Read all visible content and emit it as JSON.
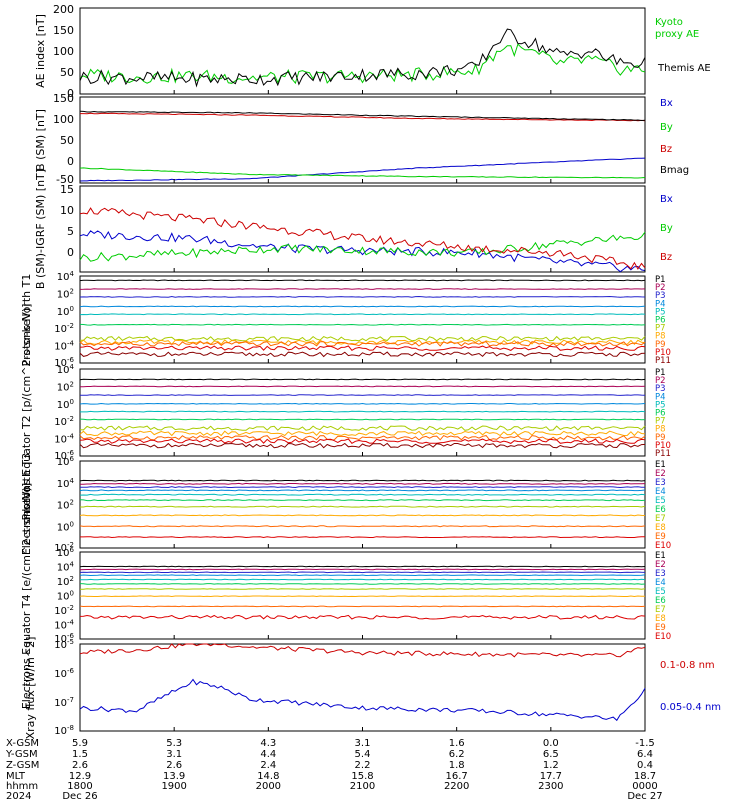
{
  "colors": {
    "black": "#000000",
    "green": "#00cc00",
    "red": "#cc0000",
    "blue": "#0000cc",
    "ch": [
      "#000000",
      "#aa0055",
      "#2222cc",
      "#0088dd",
      "#00bbbb",
      "#00cc55",
      "#aacc00",
      "#ffaa00",
      "#ff6600",
      "#dd0000",
      "#880000"
    ]
  },
  "chart_data": [
    {
      "type": "line",
      "id": "ae",
      "ylabel": "AE index [nT]",
      "ylim": [
        0,
        200
      ],
      "yticks": [
        "200",
        "150",
        "100",
        "50",
        "0"
      ],
      "series": [
        {
          "name": "Kyoto proxy AE",
          "color": "green",
          "x": [
            0,
            0.1,
            0.2,
            0.3,
            0.4,
            0.5,
            0.6,
            0.65,
            0.7,
            0.75,
            0.8,
            0.85,
            0.9,
            0.95,
            1.0
          ],
          "values": [
            45,
            40,
            42,
            38,
            40,
            42,
            45,
            50,
            55,
            110,
            95,
            70,
            80,
            60,
            55
          ]
        },
        {
          "name": "Themis AE",
          "color": "black",
          "x": [
            0,
            0.1,
            0.2,
            0.3,
            0.4,
            0.5,
            0.6,
            0.65,
            0.7,
            0.75,
            0.8,
            0.85,
            0.9,
            0.95,
            1.0
          ],
          "values": [
            40,
            38,
            35,
            35,
            38,
            45,
            48,
            55,
            60,
            140,
            120,
            90,
            100,
            75,
            70
          ]
        }
      ]
    },
    {
      "type": "line",
      "id": "bsm",
      "ylabel": "B (SM) [nT]",
      "ylim": [
        -50,
        150
      ],
      "yticks": [
        "150",
        "100",
        "50",
        "0",
        "-50"
      ],
      "series": [
        {
          "name": "Bx",
          "color": "blue",
          "x": [
            0,
            0.3,
            0.6,
            1.0
          ],
          "values": [
            -45,
            -40,
            -15,
            8
          ]
        },
        {
          "name": "By",
          "color": "green",
          "x": [
            0,
            0.3,
            0.6,
            1.0
          ],
          "values": [
            -15,
            -30,
            -35,
            -38
          ]
        },
        {
          "name": "Bz",
          "color": "red",
          "x": [
            0,
            0.3,
            0.6,
            1.0
          ],
          "values": [
            112,
            108,
            100,
            95
          ]
        },
        {
          "name": "Bmag",
          "color": "black",
          "x": [
            0,
            0.3,
            0.6,
            1.0
          ],
          "values": [
            116,
            113,
            105,
            96
          ]
        }
      ]
    },
    {
      "type": "line",
      "id": "bigrf",
      "ylabel": "B (SM)-IGRF (SM) [nT]",
      "ylim": [
        -3,
        15
      ],
      "yticks": [
        "15",
        "10",
        "5",
        "0"
      ],
      "series": [
        {
          "name": "Bx",
          "color": "blue",
          "x": [
            0,
            0.2,
            0.35,
            0.5,
            0.7,
            0.85,
            1.0
          ],
          "values": [
            5,
            4,
            2,
            1.5,
            1,
            -1,
            -2.5
          ]
        },
        {
          "name": "By",
          "color": "green",
          "x": [
            0,
            0.2,
            0.35,
            0.5,
            0.7,
            0.85,
            1.0
          ],
          "values": [
            0,
            1,
            2,
            1.5,
            1,
            3,
            4.5
          ]
        },
        {
          "name": "Bz",
          "color": "red",
          "x": [
            0,
            0.2,
            0.35,
            0.5,
            0.7,
            0.85,
            1.0
          ],
          "values": [
            10,
            8,
            6,
            4,
            2,
            1,
            -2
          ]
        }
      ]
    },
    {
      "type": "line",
      "id": "pn",
      "log": true,
      "ylabel": "Protons North T1",
      "ylim": [
        -6,
        4
      ],
      "yticks": [
        "10^4",
        "10^2",
        "10^0",
        "10^-2",
        "10^-4",
        "10^-6"
      ],
      "series": [
        {
          "name": "P1",
          "level": 3.5
        },
        {
          "name": "P2",
          "level": 2.5
        },
        {
          "name": "P3",
          "level": 1.6
        },
        {
          "name": "P4",
          "level": 0.5
        },
        {
          "name": "P5",
          "level": -0.4
        },
        {
          "name": "P6",
          "level": -1.6
        },
        {
          "name": "P7",
          "level": -3.2
        },
        {
          "name": "P8",
          "level": -3.6
        },
        {
          "name": "P9",
          "level": -3.8
        },
        {
          "name": "P10",
          "level": -4.3
        },
        {
          "name": "P11",
          "level": -5.0
        }
      ]
    },
    {
      "type": "line",
      "id": "pe",
      "log": true,
      "ylabel": "Protons Equator T2 [p/(cm^2-s-sr-keV)]",
      "ylim": [
        -6,
        4
      ],
      "yticks": [
        "10^4",
        "10^2",
        "10^0",
        "10^-2",
        "10^-4",
        "10^-6"
      ],
      "series": [
        {
          "name": "P1",
          "level": 2.8
        },
        {
          "name": "P2",
          "level": 2.0
        },
        {
          "name": "P3",
          "level": 1.0
        },
        {
          "name": "P4",
          "level": 0.0
        },
        {
          "name": "P5",
          "level": -0.9
        },
        {
          "name": "P6",
          "level": -1.8
        },
        {
          "name": "P7",
          "level": -2.8
        },
        {
          "name": "P8",
          "level": -3.4
        },
        {
          "name": "P9",
          "level": -3.9
        },
        {
          "name": "P10",
          "level": -4.3
        },
        {
          "name": "P11",
          "level": -4.8
        }
      ]
    },
    {
      "type": "line",
      "id": "en",
      "log": true,
      "ylabel": "Electrons North T3",
      "ylim": [
        -2,
        6
      ],
      "yticks": [
        "10^6",
        "10^4",
        "10^2",
        "10^0",
        "10^-2"
      ],
      "series": [
        {
          "name": "E1",
          "level": 4.2
        },
        {
          "name": "E2",
          "level": 3.9
        },
        {
          "name": "E3",
          "level": 3.6
        },
        {
          "name": "E4",
          "level": 3.3
        },
        {
          "name": "E5",
          "level": 2.9
        },
        {
          "name": "E6",
          "level": 2.4
        },
        {
          "name": "E7",
          "level": 1.8
        },
        {
          "name": "E8",
          "level": 1.0
        },
        {
          "name": "E9",
          "level": 0.0
        },
        {
          "name": "E10",
          "level": -1.0
        }
      ]
    },
    {
      "type": "line",
      "id": "ee",
      "log": true,
      "ylabel": "Electrons Equator T4 [e/(cm^2-s-sr-keV)]",
      "ylim": [
        -6,
        6
      ],
      "yticks": [
        "10^6",
        "10^4",
        "10^2",
        "10^0",
        "10^-2",
        "10^-4",
        "10^-6"
      ],
      "series": [
        {
          "name": "E1",
          "level": 4.0
        },
        {
          "name": "E2",
          "level": 3.6
        },
        {
          "name": "E3",
          "level": 3.2
        },
        {
          "name": "E4",
          "level": 2.8
        },
        {
          "name": "E5",
          "level": 2.2
        },
        {
          "name": "E6",
          "level": 1.6
        },
        {
          "name": "E7",
          "level": 0.9
        },
        {
          "name": "E8",
          "level": -0.1
        },
        {
          "name": "E9",
          "level": -1.5
        },
        {
          "name": "E10",
          "level": -3.0
        }
      ]
    },
    {
      "type": "line",
      "id": "xray",
      "log": true,
      "ylabel": "Xray flux [W/m^2]",
      "ylim": [
        -8,
        -5
      ],
      "yticks": [
        "10^-5",
        "10^-6",
        "10^-7",
        "10^-8"
      ],
      "series": [
        {
          "name": "0.1-0.8 nm",
          "color": "red",
          "x": [
            0,
            0.1,
            0.2,
            0.25,
            0.3,
            0.5,
            0.7,
            0.9,
            0.95,
            1.0
          ],
          "values": [
            -5.3,
            -5.2,
            -5.0,
            -5.0,
            -5.1,
            -5.3,
            -5.35,
            -5.4,
            -5.4,
            -5.1
          ]
        },
        {
          "name": "0.05-0.4 nm",
          "color": "blue",
          "x": [
            0,
            0.1,
            0.2,
            0.25,
            0.3,
            0.5,
            0.7,
            0.9,
            0.95,
            1.0
          ],
          "values": [
            -7.2,
            -7.3,
            -6.3,
            -6.5,
            -6.9,
            -7.2,
            -7.3,
            -7.5,
            -7.6,
            -6.6
          ]
        }
      ]
    }
  ],
  "ticks": {
    "rows": [
      "X-GSM",
      "Y-GSM",
      "Z-GSM",
      "MLT",
      "hhmm",
      "2024"
    ],
    "columns": [
      {
        "x": "5.9",
        "y": "1.5",
        "z": "2.6",
        "mlt": "12.9",
        "hhmm": "1800",
        "date": "Dec 26"
      },
      {
        "x": "5.3",
        "y": "3.1",
        "z": "2.6",
        "mlt": "13.9",
        "hhmm": "1900",
        "date": ""
      },
      {
        "x": "4.3",
        "y": "4.4",
        "z": "2.4",
        "mlt": "14.8",
        "hhmm": "2000",
        "date": ""
      },
      {
        "x": "3.1",
        "y": "5.4",
        "z": "2.2",
        "mlt": "15.8",
        "hhmm": "2100",
        "date": ""
      },
      {
        "x": "1.6",
        "y": "6.2",
        "z": "1.8",
        "mlt": "16.7",
        "hhmm": "2200",
        "date": ""
      },
      {
        "x": "0.0",
        "y": "6.5",
        "z": "1.2",
        "mlt": "17.7",
        "hhmm": "2300",
        "date": ""
      },
      {
        "x": "-1.5",
        "y": "6.4",
        "z": "0.4",
        "mlt": "18.7",
        "hhmm": "0000",
        "date": "Dec 27"
      }
    ]
  }
}
